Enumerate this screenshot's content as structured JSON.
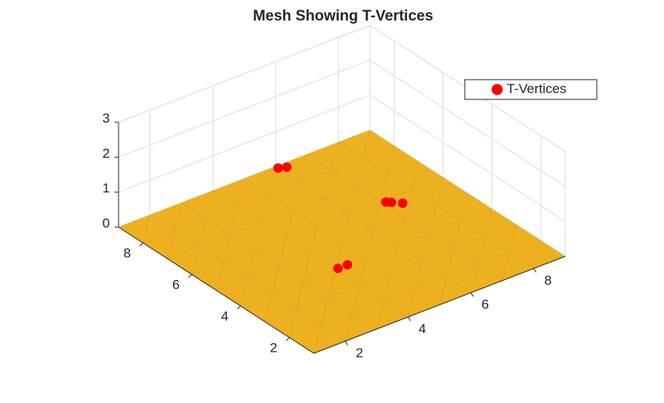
{
  "chart_data": {
    "type": "scatter3d",
    "title": "Mesh Showing T-Vertices",
    "xlim": [
      1,
      9
    ],
    "ylim": [
      1,
      9
    ],
    "zlim": [
      0,
      3
    ],
    "xticks": [
      2,
      4,
      6,
      8
    ],
    "yticks": [
      2,
      4,
      6,
      8
    ],
    "zticks": [
      0,
      1,
      2,
      3
    ],
    "grid": true,
    "surface_color": "#EDB120",
    "series": [
      {
        "name": "T-Vertices",
        "color": "#ff0000",
        "x": [
          6,
          6.2,
          7.1,
          7.2,
          7.4,
          4.1,
          4.4
        ],
        "y": [
          8.9,
          8.8,
          5.9,
          5.8,
          5.6,
          4,
          4
        ],
        "z": [
          0,
          0,
          0,
          0,
          0,
          0,
          0
        ]
      }
    ],
    "legend": "top-right"
  }
}
